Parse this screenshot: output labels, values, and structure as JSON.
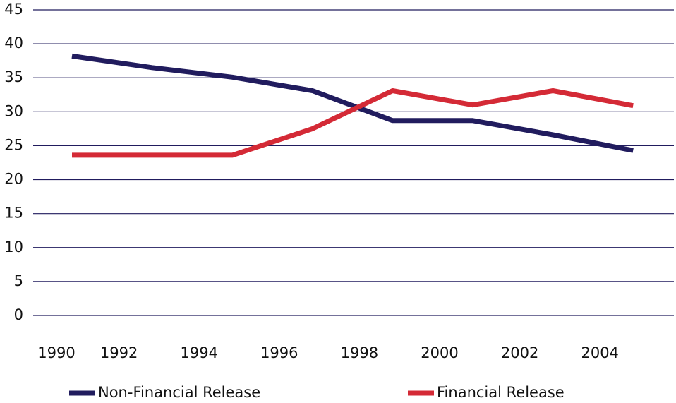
{
  "chart_data": {
    "type": "line",
    "categories": [
      "1990",
      "1992",
      "1994",
      "1996",
      "1998",
      "2000",
      "2002",
      "2004"
    ],
    "series": [
      {
        "name": "Non-Financial Release",
        "color": "#211c5e",
        "values": [
          38.2,
          36.5,
          35.1,
          33.1,
          28.7,
          28.7,
          26.6,
          24.3
        ]
      },
      {
        "name": "Financial Release",
        "color": "#d42a36",
        "values": [
          23.6,
          23.6,
          23.6,
          27.5,
          33.1,
          31.0,
          33.1,
          30.9
        ]
      }
    ],
    "ylim": [
      0,
      45
    ],
    "yticks": [
      0,
      5,
      10,
      15,
      20,
      25,
      30,
      35,
      40,
      45
    ],
    "grid": true
  }
}
